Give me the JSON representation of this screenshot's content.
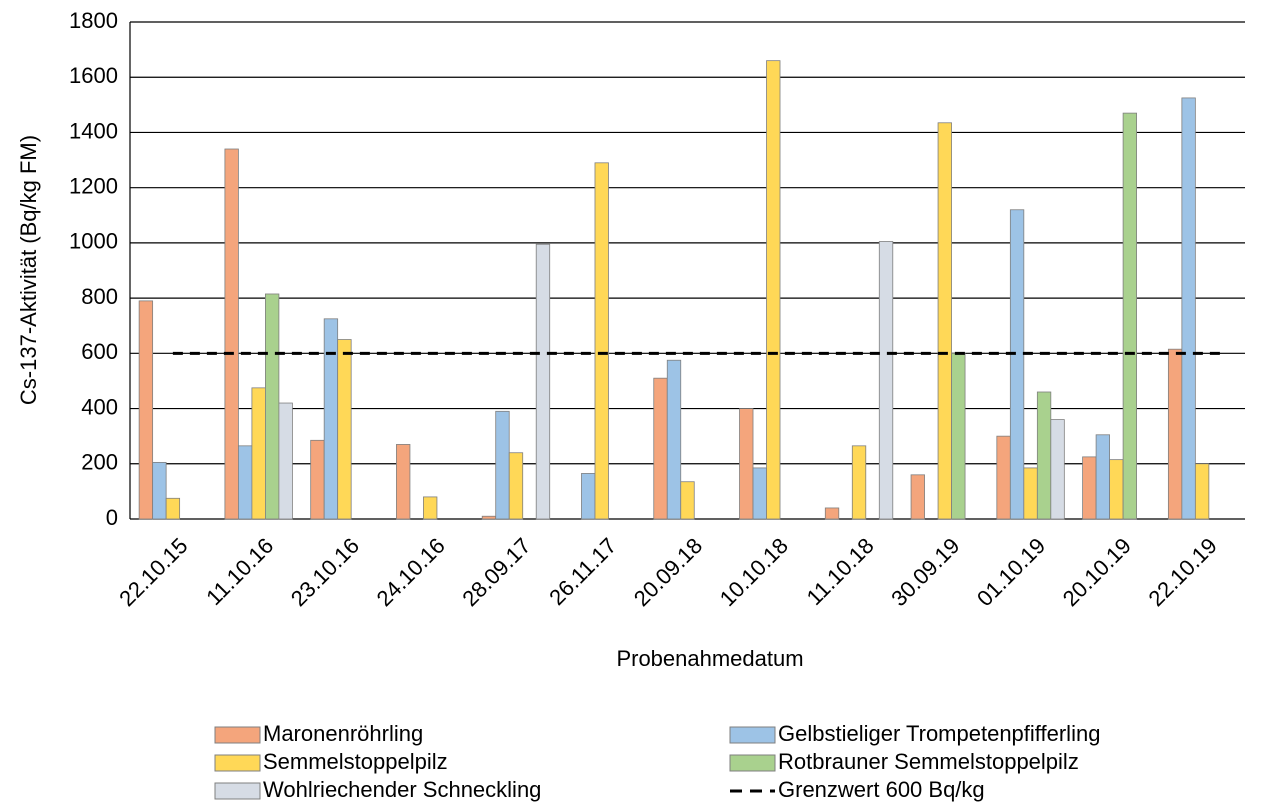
{
  "chart_data": {
    "type": "bar",
    "y_label": "Cs-137-Aktivität (Bq/kg FM)",
    "x_label": "Probenahmedatum",
    "categories": [
      "22.10.15",
      "11.10.16",
      "23.10.16",
      "24.10.16",
      "28.09.17",
      "26.11.17",
      "20.09.18",
      "10.10.18",
      "11.10.18",
      "30.09.19",
      "01.10.19",
      "20.10.19",
      "22.10.19"
    ],
    "series": [
      {
        "name": "Maronenröhrling",
        "color": "#f4a57c",
        "values": [
          790,
          1340,
          285,
          270,
          10,
          null,
          510,
          400,
          40,
          160,
          300,
          225,
          615
        ]
      },
      {
        "name": "Gelbstieliger Trompetenpfifferling",
        "color": "#9dc3e6",
        "values": [
          205,
          265,
          725,
          null,
          390,
          165,
          575,
          185,
          null,
          null,
          1120,
          305,
          1525
        ]
      },
      {
        "name": "Semmelstoppelpilz",
        "color": "#ffd857",
        "values": [
          75,
          475,
          650,
          80,
          240,
          1290,
          135,
          1660,
          265,
          1435,
          185,
          215,
          200
        ]
      },
      {
        "name": "Rotbrauner Semmelstoppelpilz",
        "color": "#a9d18e",
        "values": [
          null,
          815,
          null,
          null,
          null,
          null,
          null,
          null,
          null,
          600,
          460,
          1470,
          null
        ]
      },
      {
        "name": "Wohlriechender Schneckling",
        "color": "#d6dce5",
        "values": [
          null,
          420,
          null,
          null,
          995,
          null,
          null,
          null,
          1005,
          null,
          360,
          null,
          null
        ]
      }
    ],
    "threshold": {
      "name": "Grenzwert 600 Bq/kg",
      "value": 600,
      "color": "#000000"
    },
    "ylim": [
      0,
      1800
    ],
    "yticks": [
      0,
      200,
      400,
      600,
      800,
      1000,
      1200,
      1400,
      1600,
      1800
    ],
    "grid": true
  }
}
